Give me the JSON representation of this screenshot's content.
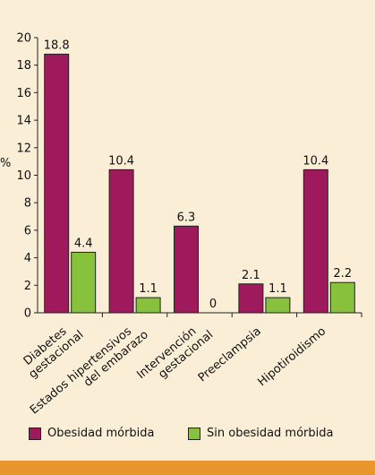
{
  "chart_data": {
    "type": "bar",
    "ylabel": "%",
    "ylim": [
      0,
      20
    ],
    "yticks": [
      0,
      2,
      4,
      6,
      8,
      10,
      12,
      14,
      16,
      18,
      20
    ],
    "categories": [
      [
        "Diabetes",
        "gestacional"
      ],
      [
        "Estados hipertensivos",
        "del embarazo"
      ],
      [
        "Intervención",
        "gestacional"
      ],
      [
        "Preeclampsia"
      ],
      [
        "Hipotiroidismo"
      ]
    ],
    "series": [
      {
        "name": "Obesidad mórbida",
        "values": [
          18.8,
          10.4,
          6.3,
          2.1,
          10.4
        ],
        "labels": [
          "18.8",
          "10.4",
          "6.3",
          "2.1",
          "10.4"
        ]
      },
      {
        "name": "Sin obesidad mórbida",
        "values": [
          4.4,
          1.1,
          0,
          1.1,
          2.2
        ],
        "labels": [
          "4.4",
          "1.1",
          "0",
          "1.1",
          "2.2"
        ]
      }
    ],
    "legend_position": "bottom",
    "grid": false
  },
  "colors": {
    "background": "#fbeed6",
    "series": [
      "#9e1a5c",
      "#88c23c"
    ],
    "accent_bar": "#e8962d"
  }
}
